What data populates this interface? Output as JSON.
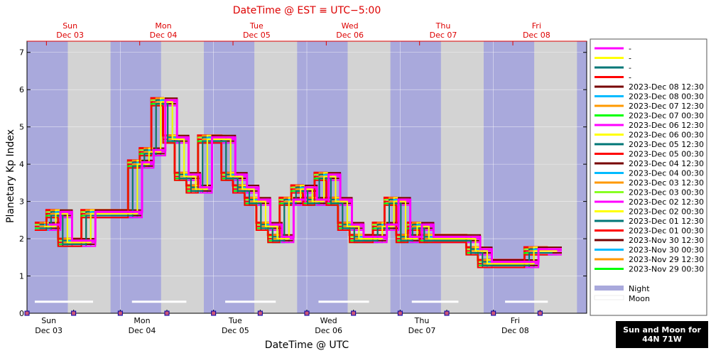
{
  "chart_data": {
    "type": "line",
    "top_title": "DateTime @ EST ≡ UTC−5:00",
    "xlabel": "DateTime @ UTC",
    "ylabel": "Planetary Kp Index",
    "ylim": [
      0,
      7.3
    ],
    "xlim_hours_utc": [
      "2023-12-03 00:00",
      "2023-12-09 00:00"
    ],
    "y_ticks": [
      "0",
      "1",
      "2",
      "3",
      "4",
      "5",
      "6",
      "7"
    ],
    "grid": true,
    "legend_placement": "right",
    "bottom_days": [
      {
        "day": "Sun",
        "date": "Dec 03"
      },
      {
        "day": "Mon",
        "date": "Dec 04"
      },
      {
        "day": "Tue",
        "date": "Dec 05"
      },
      {
        "day": "Wed",
        "date": "Dec 06"
      },
      {
        "day": "Thu",
        "date": "Dec 07"
      },
      {
        "day": "Fri",
        "date": "Dec 08"
      }
    ],
    "top_days": [
      {
        "day": "Sun",
        "date": "Dec 03"
      },
      {
        "day": "Mon",
        "date": "Dec 04"
      },
      {
        "day": "Tue",
        "date": "Dec 05"
      },
      {
        "day": "Wed",
        "date": "Dec 06"
      },
      {
        "day": "Thu",
        "date": "Dec 07"
      },
      {
        "day": "Fri",
        "date": "Dec 08"
      }
    ],
    "night_bands_hours": [
      [
        0,
        10.5
      ],
      [
        21.5,
        34.5
      ],
      [
        45.5,
        58.5
      ],
      [
        69.5,
        82.5
      ],
      [
        93.5,
        106.5
      ],
      [
        117.5,
        130.5
      ],
      [
        141.5,
        144
      ]
    ],
    "moon_bars_hours": [
      [
        2,
        17
      ],
      [
        27,
        41
      ],
      [
        51,
        64
      ],
      [
        75,
        88
      ],
      [
        99,
        111
      ],
      [
        123,
        134
      ]
    ],
    "series": [
      {
        "name": "-",
        "color": "#ff00ff"
      },
      {
        "name": "-",
        "color": "#ffff00"
      },
      {
        "name": "-",
        "color": "#007777"
      },
      {
        "name": "-",
        "color": "#ff0000"
      },
      {
        "name": "2023-Dec 08 12:30",
        "color": "#770000"
      },
      {
        "name": "2023-Dec 08 00:30",
        "color": "#00bbff"
      },
      {
        "name": "2023-Dec 07 12:30",
        "color": "#ff9900"
      },
      {
        "name": "2023-Dec 07 00:30",
        "color": "#00ff00"
      },
      {
        "name": "2023-Dec 06 12:30",
        "color": "#ff00ff"
      },
      {
        "name": "2023-Dec 06 00:30",
        "color": "#ffff00"
      },
      {
        "name": "2023-Dec 05 12:30",
        "color": "#007777"
      },
      {
        "name": "2023-Dec 05 00:30",
        "color": "#ff0000"
      },
      {
        "name": "2023-Dec 04 12:30",
        "color": "#770000"
      },
      {
        "name": "2023-Dec 04 00:30",
        "color": "#00bbff"
      },
      {
        "name": "2023-Dec 03 12:30",
        "color": "#ff9900"
      },
      {
        "name": "2023-Dec 03 00:30",
        "color": "#88ff22"
      },
      {
        "name": "2023-Dec 02 12:30",
        "color": "#ff00ff"
      },
      {
        "name": "2023-Dec 02 00:30",
        "color": "#ffff00"
      },
      {
        "name": "2023-Dec 01 12:30",
        "color": "#007777"
      },
      {
        "name": "2023-Dec 01 00:30",
        "color": "#ff0000"
      },
      {
        "name": "2023-Nov 30 12:30",
        "color": "#770000"
      },
      {
        "name": "2023-Nov 30 00:30",
        "color": "#00bbff"
      },
      {
        "name": "2023-Nov 29 12:30",
        "color": "#ff9900"
      },
      {
        "name": "2023-Nov 29 00:30",
        "color": "#00ff00"
      }
    ],
    "kp_3hour_values": [
      2.33,
      2.67,
      1.9,
      1.9,
      2.67,
      2.67,
      2.67,
      2.67,
      4.0,
      4.33,
      5.67,
      4.67,
      3.67,
      3.33,
      4.67,
      4.67,
      3.67,
      3.33,
      3.0,
      2.33,
      2.0,
      3.0,
      3.33,
      3.0,
      3.67,
      3.0,
      2.33,
      2.0,
      2.0,
      2.33,
      3.0,
      2.0,
      2.33,
      2.0,
      2.0,
      2.0,
      2.0,
      1.67,
      1.33,
      1.33,
      1.33,
      1.33,
      1.67,
      1.67
    ],
    "legend_extra": {
      "night": "Night",
      "moon": "Moon"
    },
    "sun_moon_label_1": "Sun and Moon for",
    "sun_moon_label_2": "44N 71W"
  }
}
